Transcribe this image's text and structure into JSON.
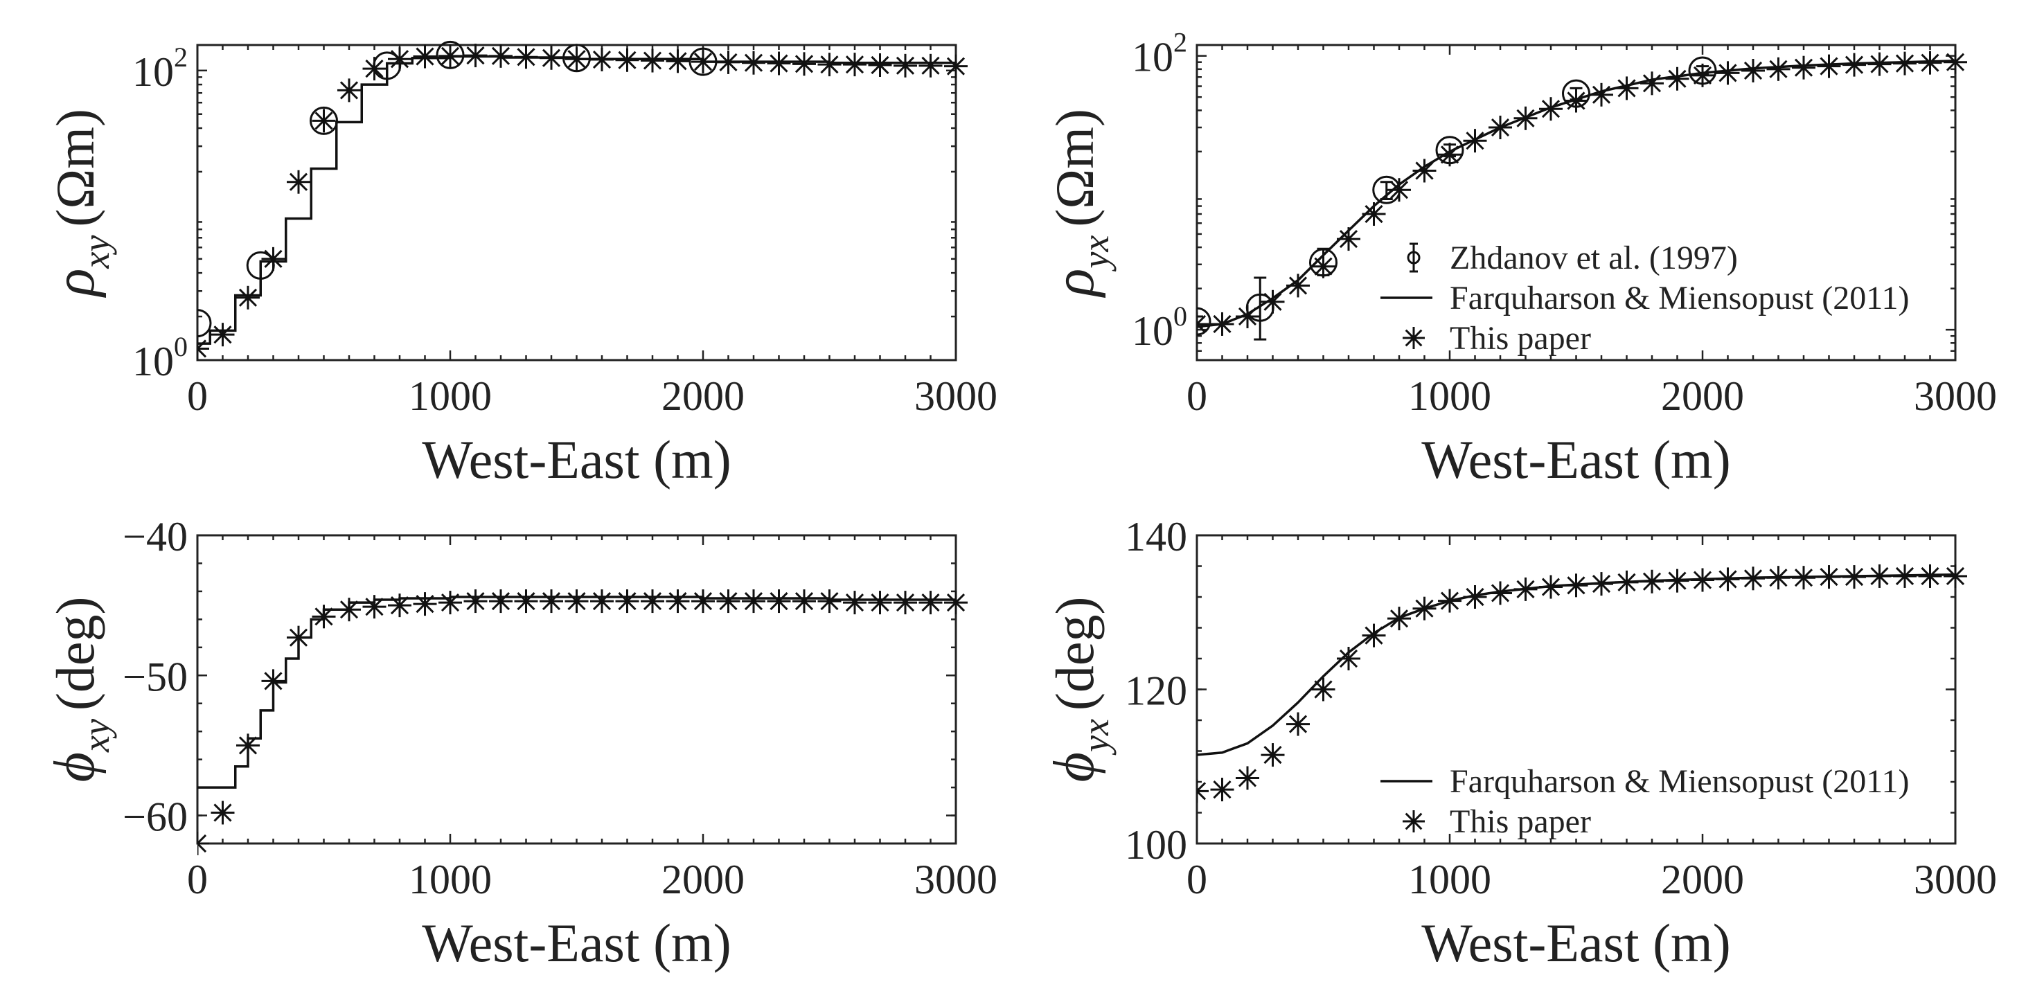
{
  "chart_data": [
    {
      "type": "line",
      "id": "rho_xy",
      "ylabel": {
        "symbol": "ρ",
        "subscript": "xy",
        "unit": "(Ωm)"
      },
      "xlabel": "West-East (m)",
      "xlim": [
        0,
        3000
      ],
      "ylim": [
        1,
        150
      ],
      "yscale": "log",
      "x_ticks": [
        0,
        1000,
        2000,
        3000
      ],
      "x_tick_labels": [
        "0",
        "1000",
        "2000",
        "3000"
      ],
      "y_ticks": [
        1,
        100
      ],
      "y_tick_labels": [
        {
          "base": "10",
          "exp": "0"
        },
        {
          "base": "10",
          "exp": "2"
        }
      ],
      "series": [
        {
          "name": "Farquharson & Miensopust (2011)",
          "style": "step-line",
          "x": [
            0,
            50,
            150,
            250,
            350,
            450,
            550,
            650,
            750,
            850,
            1000,
            1200,
            1500,
            2000,
            2500,
            3000
          ],
          "y": [
            1.3,
            1.6,
            2.8,
            4.8,
            9.5,
            21,
            44,
            80,
            112,
            122,
            125,
            123,
            120,
            115,
            113,
            112
          ]
        },
        {
          "name": "Zhdanov et al. (1997)",
          "style": "circle",
          "x": [
            0,
            250,
            500,
            750,
            1000,
            1500,
            2000
          ],
          "y": [
            1.8,
            4.5,
            45,
            108,
            128,
            122,
            115
          ]
        },
        {
          "name": "This paper",
          "style": "asterisk",
          "x": [
            0,
            100,
            200,
            300,
            400,
            500,
            600,
            700,
            800,
            900,
            1000,
            1100,
            1200,
            1300,
            1400,
            1500,
            1600,
            1700,
            1800,
            1900,
            2000,
            2100,
            2200,
            2300,
            2400,
            2500,
            2600,
            2700,
            2800,
            2900,
            3000
          ],
          "y": [
            1.2,
            1.5,
            2.7,
            5.0,
            17,
            45,
            73,
            103,
            120,
            125,
            126,
            127,
            126,
            124,
            122,
            120,
            119,
            118,
            117,
            116,
            115,
            114,
            113,
            112,
            111,
            110,
            110,
            109,
            108,
            108,
            107
          ]
        }
      ]
    },
    {
      "type": "line",
      "id": "rho_yx",
      "ylabel": {
        "symbol": "ρ",
        "subscript": "yx",
        "unit": "(Ωm)"
      },
      "xlabel": "West-East (m)",
      "xlim": [
        0,
        3000
      ],
      "ylim": [
        0.6,
        120
      ],
      "yscale": "log",
      "x_ticks": [
        0,
        1000,
        2000,
        3000
      ],
      "x_tick_labels": [
        "0",
        "1000",
        "2000",
        "3000"
      ],
      "y_ticks": [
        1,
        100
      ],
      "y_tick_labels": [
        {
          "base": "10",
          "exp": "0"
        },
        {
          "base": "10",
          "exp": "2"
        }
      ],
      "legend": {
        "position": "bottom-right",
        "entries": [
          "Zhdanov et al. (1997)",
          "Farquharson & Miensopust (2011)",
          "This paper"
        ]
      },
      "series": [
        {
          "name": "Farquharson & Miensopust (2011)",
          "style": "line",
          "x": [
            0,
            100,
            200,
            300,
            400,
            500,
            600,
            700,
            800,
            900,
            1000,
            1200,
            1400,
            1600,
            1800,
            2000,
            2200,
            2400,
            2600,
            2800,
            3000
          ],
          "y": [
            1.05,
            1.1,
            1.3,
            1.7,
            2.3,
            3.5,
            5.3,
            8.0,
            11.5,
            15.5,
            20,
            30,
            42,
            55,
            67,
            75,
            81,
            85,
            88,
            90,
            92
          ]
        },
        {
          "name": "Zhdanov et al. (1997)",
          "style": "circle-errorbar",
          "x": [
            0,
            250,
            500,
            750,
            1000,
            1500,
            2000
          ],
          "y": [
            1.15,
            1.45,
            3.1,
            10.5,
            20.5,
            53,
            78
          ],
          "err_low": [
            1.05,
            0.85,
            2.5,
            9.0,
            18.5,
            48,
            73
          ],
          "err_high": [
            1.25,
            2.4,
            3.9,
            12.0,
            22.5,
            58,
            84
          ]
        },
        {
          "name": "This paper",
          "style": "asterisk",
          "x": [
            0,
            100,
            200,
            300,
            400,
            500,
            600,
            700,
            800,
            900,
            1000,
            1100,
            1200,
            1300,
            1400,
            1500,
            1600,
            1700,
            1800,
            1900,
            2000,
            2100,
            2200,
            2300,
            2400,
            2500,
            2600,
            2700,
            2800,
            2900,
            3000
          ],
          "y": [
            1.1,
            1.1,
            1.25,
            1.6,
            2.1,
            2.9,
            4.6,
            7.0,
            10.5,
            14.5,
            19,
            24,
            30,
            35,
            41,
            47,
            52,
            58,
            63,
            68,
            72,
            75,
            78,
            80,
            82,
            84,
            86,
            87,
            88,
            89,
            90
          ]
        }
      ]
    },
    {
      "type": "line",
      "id": "phi_xy",
      "ylabel": {
        "symbol": "ϕ",
        "subscript": "xy",
        "unit": "(deg)"
      },
      "xlabel": "West-East (m)",
      "xlim": [
        0,
        3000
      ],
      "ylim": [
        -62,
        -40
      ],
      "yscale": "linear",
      "x_ticks": [
        0,
        1000,
        2000,
        3000
      ],
      "x_tick_labels": [
        "0",
        "1000",
        "2000",
        "3000"
      ],
      "y_ticks": [
        -40,
        -50,
        -60
      ],
      "y_tick_labels": [
        "−40",
        "−50",
        "−60"
      ],
      "series": [
        {
          "name": "Farquharson & Miensopust (2011)",
          "style": "step-line",
          "x": [
            0,
            100,
            150,
            200,
            250,
            300,
            350,
            400,
            450,
            500,
            600,
            700,
            800,
            1000,
            1300,
            1500,
            2000,
            2500,
            3000
          ],
          "y": [
            -58,
            -58,
            -56.5,
            -54.5,
            -52.5,
            -50.5,
            -48.8,
            -47.3,
            -46,
            -45.3,
            -44.8,
            -44.6,
            -44.5,
            -44.4,
            -44.4,
            -44.4,
            -44.5,
            -44.6,
            -44.6
          ]
        },
        {
          "name": "This paper",
          "style": "asterisk",
          "x": [
            0,
            100,
            200,
            300,
            400,
            500,
            600,
            700,
            800,
            900,
            1000,
            1100,
            1200,
            1300,
            1400,
            1500,
            1600,
            1700,
            1800,
            1900,
            2000,
            2100,
            2200,
            2300,
            2400,
            2500,
            2600,
            2700,
            2800,
            2900,
            3000
          ],
          "y": [
            -62,
            -59.8,
            -55,
            -50.4,
            -47.3,
            -45.8,
            -45.3,
            -45.1,
            -45,
            -44.9,
            -44.8,
            -44.7,
            -44.7,
            -44.7,
            -44.7,
            -44.7,
            -44.7,
            -44.7,
            -44.7,
            -44.7,
            -44.7,
            -44.7,
            -44.7,
            -44.7,
            -44.7,
            -44.7,
            -44.8,
            -44.8,
            -44.8,
            -44.8,
            -44.8
          ]
        }
      ]
    },
    {
      "type": "line",
      "id": "phi_yx",
      "ylabel": {
        "symbol": "ϕ",
        "subscript": "yx",
        "unit": "(deg)"
      },
      "xlabel": "West-East (m)",
      "xlim": [
        0,
        3000
      ],
      "ylim": [
        100,
        140
      ],
      "yscale": "linear",
      "x_ticks": [
        0,
        1000,
        2000,
        3000
      ],
      "x_tick_labels": [
        "0",
        "1000",
        "2000",
        "3000"
      ],
      "y_ticks": [
        100,
        120,
        140
      ],
      "y_tick_labels": [
        "100",
        "120",
        "140"
      ],
      "legend": {
        "position": "bottom-right",
        "entries": [
          "Farquharson & Miensopust (2011)",
          "This paper"
        ]
      },
      "series": [
        {
          "name": "Farquharson & Miensopust (2011)",
          "style": "line",
          "x": [
            0,
            100,
            200,
            300,
            400,
            500,
            600,
            700,
            800,
            900,
            1000,
            1100,
            1200,
            1400,
            1600,
            1800,
            2000,
            2200,
            2400,
            2600,
            2800,
            3000
          ],
          "y": [
            111.5,
            111.8,
            113,
            115.3,
            118.3,
            121.7,
            124.8,
            127.3,
            129.3,
            130.5,
            131.5,
            132.2,
            132.7,
            133.4,
            133.8,
            134.1,
            134.3,
            134.5,
            134.6,
            134.7,
            134.8,
            134.9
          ]
        },
        {
          "name": "This paper",
          "style": "asterisk",
          "x": [
            0,
            100,
            200,
            300,
            400,
            500,
            600,
            700,
            800,
            900,
            1000,
            1100,
            1200,
            1300,
            1400,
            1500,
            1600,
            1700,
            1800,
            1900,
            2000,
            2100,
            2200,
            2300,
            2400,
            2500,
            2600,
            2700,
            2800,
            2900,
            3000
          ],
          "y": [
            106.8,
            107,
            108.5,
            111.5,
            115.5,
            120,
            124,
            127,
            129.2,
            130.5,
            131.5,
            132,
            132.5,
            133,
            133.3,
            133.5,
            133.7,
            133.9,
            134,
            134.1,
            134.2,
            134.3,
            134.4,
            134.5,
            134.5,
            134.6,
            134.6,
            134.7,
            134.7,
            134.7,
            134.7
          ]
        }
      ]
    }
  ]
}
